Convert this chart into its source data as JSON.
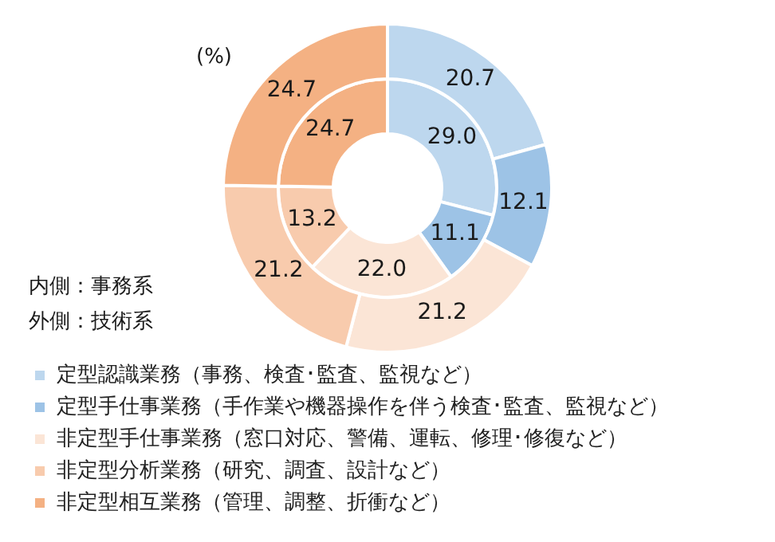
{
  "chart_data": {
    "type": "donut",
    "categories": [
      "定型認識業務（事務、検査･監査、監視など）",
      "定型手仕事業務（手作業や機器操作を伴う検査･監査、監視など）",
      "非定型手仕事業務（窓口対応、警備、運転、修理･修復など）",
      "非定型分析業務（研究、調査、設計など）",
      "非定型相互業務（管理、調整、折衝など）"
    ],
    "colors": [
      "#bdd7ee",
      "#9dc3e6",
      "#fbe5d6",
      "#f8cbad",
      "#f4b183"
    ],
    "series": [
      {
        "values": [
          29.0,
          11.1,
          22.0,
          13.2,
          24.7
        ],
        "value_labels": [
          "29.0",
          "11.1",
          "22.0",
          "13.2",
          "24.7"
        ]
      },
      {
        "values": [
          20.7,
          12.1,
          21.2,
          21.2,
          24.7
        ],
        "value_labels": [
          "20.7",
          "12.1",
          "21.2",
          "21.2",
          "24.7"
        ]
      }
    ],
    "legend": "bottom",
    "annotations": [
      "(%)",
      "内側：事務系",
      "外側：技術系"
    ]
  }
}
